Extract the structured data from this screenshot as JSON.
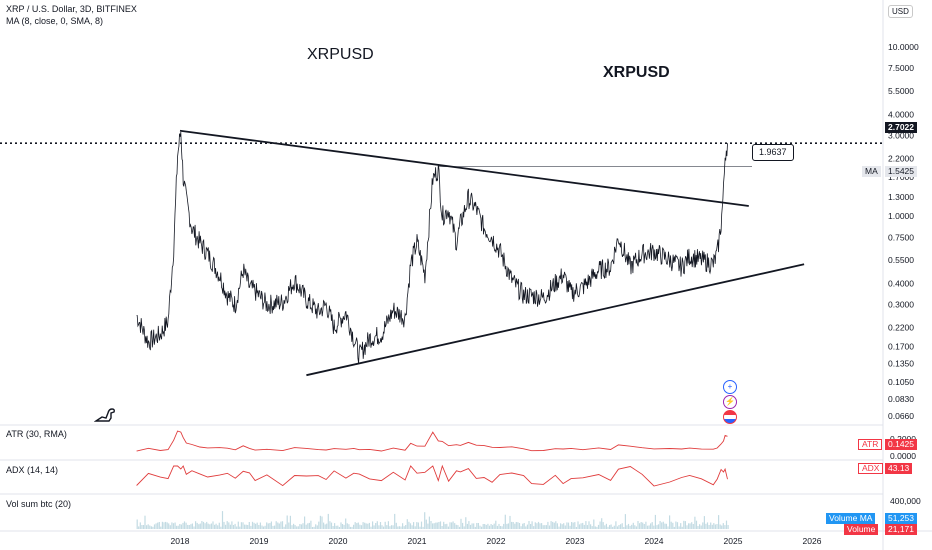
{
  "header": {
    "title": "XRP / U.S. Dollar, 3D, BITFINEX",
    "indicator": "MA (8, close, 0, SMA, 8)"
  },
  "currency": "USD",
  "annotations": {
    "left": "XRPUSD",
    "right": "XRPUSD"
  },
  "line_label": "1.9637",
  "panes": {
    "atr": {
      "label": "ATR (30, RMA)",
      "tag": "ATR",
      "value": "0.1425",
      "axis": [
        "0.2000",
        "0.0000"
      ]
    },
    "adx": {
      "label": "ADX (14, 14)",
      "tag": "ADX",
      "value": "43.13"
    },
    "vol": {
      "label": "Vol sum btc (20)",
      "axis": "400,000",
      "tag_ma": "Volume MA",
      "ma_value": "51,253",
      "tag_vol": "Volume",
      "vol_value": "21,171"
    }
  },
  "price_tags": {
    "last": "2.7022",
    "ma_label": "MA",
    "ma_value": "1.5425"
  },
  "colors": {
    "price": "#131722",
    "indicator": "#e03d3d",
    "ma_tag_bg": "#e5e7ec",
    "volume_bar": "#c3dbe3",
    "volume_ma_tag": "#2196f3",
    "volume_tag": "#f23645"
  },
  "icons": [
    "dino-logo-icon",
    "plus-circle-icon",
    "lightning-icon",
    "flag-icon"
  ],
  "chart_data": {
    "type": "line",
    "symbol": "XRPUSD",
    "exchange": "BITFINEX",
    "interval": "3D",
    "y_scale": "log",
    "y_ticks": [
      "10.0000",
      "7.5000",
      "5.5000",
      "4.0000",
      "3.0000",
      "2.2000",
      "1.7000",
      "1.3000",
      "1.0000",
      "0.7500",
      "0.5500",
      "0.4000",
      "0.3000",
      "0.2200",
      "0.1700",
      "0.1350",
      "0.1050",
      "0.0830",
      "0.0660"
    ],
    "x_ticks": [
      "2018",
      "2019",
      "2020",
      "2021",
      "2022",
      "2023",
      "2024",
      "2025",
      "2026"
    ],
    "x": [
      2017.45,
      2017.6,
      2017.75,
      2017.85,
      2017.92,
      2017.97,
      2018.01,
      2018.04,
      2018.08,
      2018.15,
      2018.25,
      2018.35,
      2018.5,
      2018.6,
      2018.7,
      2018.8,
      2018.88,
      2018.95,
      2019.1,
      2019.3,
      2019.45,
      2019.6,
      2019.75,
      2019.85,
      2019.95,
      2020.1,
      2020.2,
      2020.27,
      2020.4,
      2020.55,
      2020.7,
      2020.85,
      2020.92,
      2021.0,
      2021.1,
      2021.2,
      2021.27,
      2021.32,
      2021.4,
      2021.5,
      2021.55,
      2021.65,
      2021.75,
      2021.85,
      2021.95,
      2022.05,
      2022.2,
      2022.35,
      2022.45,
      2022.6,
      2022.75,
      2022.85,
      2022.95,
      2023.1,
      2023.3,
      2023.45,
      2023.55,
      2023.7,
      2023.85,
      2024.0,
      2024.2,
      2024.35,
      2024.45,
      2024.6,
      2024.75,
      2024.8,
      2024.85,
      2024.88,
      2024.9,
      2024.93
    ],
    "y": [
      0.26,
      0.18,
      0.2,
      0.24,
      0.65,
      2.3,
      3.2,
      1.7,
      1.25,
      0.85,
      0.7,
      0.6,
      0.45,
      0.34,
      0.3,
      0.48,
      0.38,
      0.36,
      0.3,
      0.31,
      0.42,
      0.32,
      0.27,
      0.3,
      0.22,
      0.27,
      0.19,
      0.15,
      0.19,
      0.2,
      0.28,
      0.25,
      0.52,
      0.7,
      0.45,
      1.65,
      1.9,
      1.0,
      1.1,
      0.7,
      0.9,
      1.28,
      1.1,
      0.85,
      0.75,
      0.62,
      0.42,
      0.34,
      0.34,
      0.33,
      0.4,
      0.45,
      0.35,
      0.38,
      0.48,
      0.5,
      0.75,
      0.5,
      0.6,
      0.62,
      0.55,
      0.5,
      0.58,
      0.55,
      0.52,
      0.6,
      0.9,
      1.4,
      2.3,
      2.7022
    ],
    "trendlines": [
      {
        "name": "descending",
        "from": [
          2018.0,
          3.2
        ],
        "to": [
          2025.2,
          1.15
        ]
      },
      {
        "name": "ascending",
        "from": [
          2019.6,
          0.115
        ],
        "to": [
          2025.9,
          0.52
        ]
      }
    ],
    "horizontal_levels": [
      2.7022,
      1.9637
    ],
    "last_price": 2.7022,
    "ma_last": 1.5425,
    "atr_last": 0.1425,
    "adx_last": 43.13,
    "volume_ma_last": 51253,
    "volume_last": 21171
  }
}
